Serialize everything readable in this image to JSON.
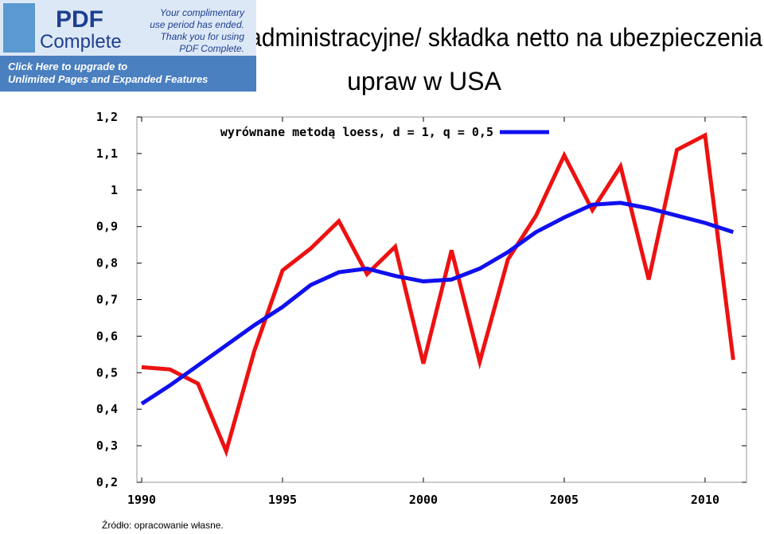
{
  "banner": {
    "logo_top": "PDF",
    "logo_bottom": "Complete",
    "notice": [
      "Your complimentary",
      "use period has ended.",
      "Thank you for using",
      "PDF Complete."
    ],
    "upgrade": [
      "Click Here to upgrade to",
      "Unlimited Pages and Expanded Features"
    ]
  },
  "chart_data": {
    "type": "line",
    "title": [
      "administracyjne/ składka netto na ubezpieczenia",
      "upraw w USA"
    ],
    "x": [
      1990,
      1991,
      1992,
      1993,
      1994,
      1995,
      1996,
      1997,
      1998,
      1999,
      2000,
      2001,
      2002,
      2003,
      2004,
      2005,
      2006,
      2007,
      2008,
      2009,
      2010,
      2011
    ],
    "series": [
      {
        "color": "#ee1111",
        "values": [
          0.515,
          0.509,
          0.47,
          0.285,
          0.56,
          0.78,
          0.84,
          0.915,
          0.77,
          0.845,
          0.525,
          0.835,
          0.53,
          0.81,
          0.93,
          1.095,
          0.945,
          1.065,
          0.755,
          1.11,
          1.15,
          0.535
        ]
      },
      {
        "name": "wyrównane metodą loess, d = 1, q = 0,5",
        "color": "#1010ee",
        "values": [
          0.415,
          0.465,
          0.52,
          0.575,
          0.63,
          0.68,
          0.74,
          0.775,
          0.785,
          0.765,
          0.75,
          0.755,
          0.785,
          0.83,
          0.885,
          0.925,
          0.96,
          0.965,
          0.95,
          0.93,
          0.91,
          0.885
        ]
      }
    ],
    "xlim": [
      1989.83,
      2011.47
    ],
    "xticks": [
      1990,
      1995,
      2000,
      2005,
      2010
    ],
    "ylim": [
      0.2,
      1.2
    ],
    "yticks": [
      {
        "value": 0.2,
        "label": "0,2"
      },
      {
        "value": 0.3,
        "label": "0,3"
      },
      {
        "value": 0.4,
        "label": "0,4"
      },
      {
        "value": 0.5,
        "label": "0,5"
      },
      {
        "value": 0.6,
        "label": "0,6"
      },
      {
        "value": 0.7,
        "label": "0,7"
      },
      {
        "value": 0.8,
        "label": "0,8"
      },
      {
        "value": 0.9,
        "label": "0,9"
      },
      1,
      {
        "value": 1.1,
        "label": "1,1"
      },
      {
        "value": 1.2,
        "label": "1,2"
      }
    ],
    "grid": false,
    "source": "Źródło:   opracowanie własne."
  }
}
